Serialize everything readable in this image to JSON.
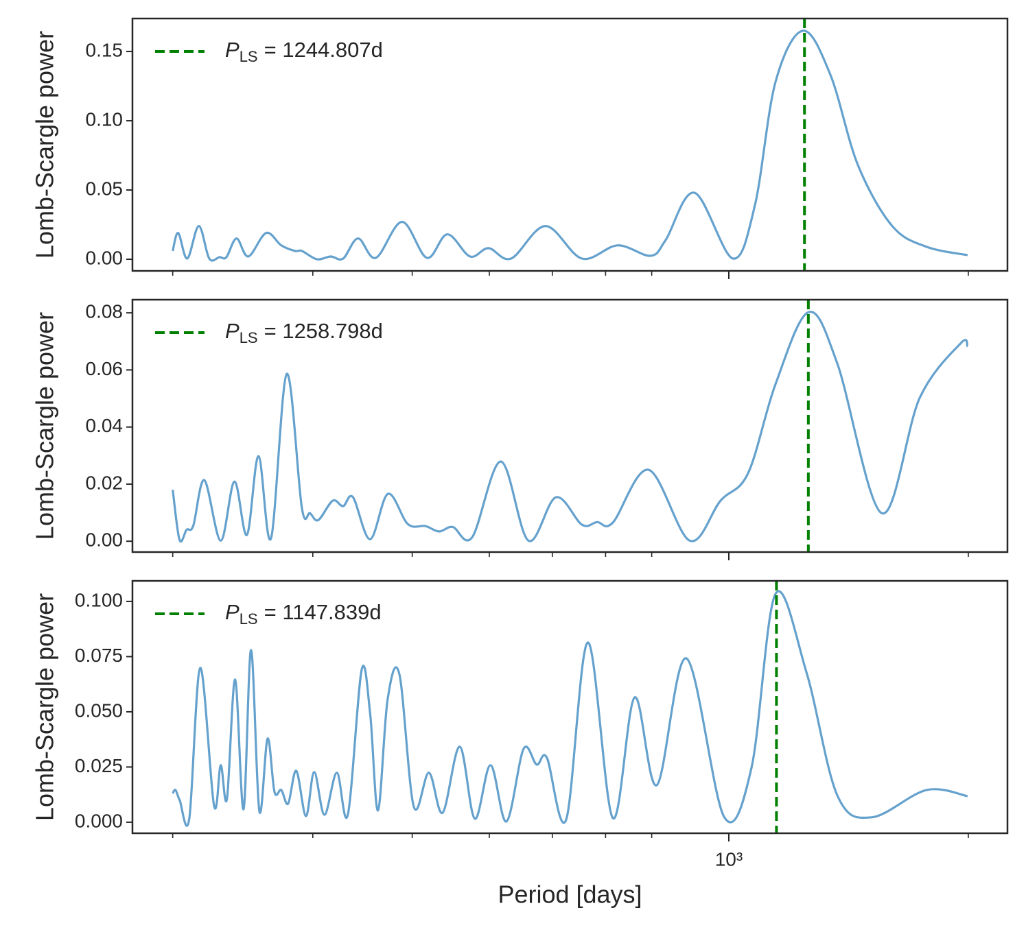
{
  "chart_data": [
    {
      "type": "line",
      "ylabel": "Lomb-Scargle power",
      "xscale": "log",
      "xlim": [
        178,
        2240
      ],
      "ylim": [
        -0.0084,
        0.1738
      ],
      "yticks": [
        {
          "value": 0,
          "label": "0.00"
        },
        0.05,
        {
          "value": 0.1,
          "label": "0.10"
        },
        0.15
      ],
      "series": [
        {
          "name": "Lomb-Scargle power",
          "color": "#65a1cd",
          "x": [
            200.0,
            203.2,
            208.6,
            215.7,
            222.3,
            229.0,
            233.6,
            240.6,
            248.9,
            262.1,
            273.8,
            284.9,
            290.6,
            303.6,
            315.9,
            327.5,
            342.0,
            360.1,
            388.4,
            417.3,
            442.8,
            472.9,
            498.9,
            532.6,
            588.3,
            653.6,
            724.8,
            797.4,
            833.2,
            905.6,
            1012.0,
            1078.4,
            1144.6,
            1239.6,
            1342.1,
            1453.0,
            1604.8,
            1772.3,
            1996.0
          ],
          "values": [
            0.006,
            0.019,
            0.0005,
            0.024,
            0.0005,
            0.0015,
            0.0015,
            0.015,
            0.002,
            0.019,
            0.01,
            0.006,
            0.006,
            0.0,
            0.002,
            0.0005,
            0.015,
            0.001,
            0.027,
            0.001,
            0.018,
            0.002,
            0.008,
            0.0005,
            0.024,
            0.0005,
            0.01,
            0.0025,
            0.014,
            0.048,
            0.0005,
            0.039,
            0.128,
            0.165,
            0.133,
            0.068,
            0.024,
            0.009,
            0.003
          ]
        }
      ],
      "peak": {
        "value": 1244.807,
        "label": "= 1244.807d"
      },
      "peak_symbol": "P",
      "peak_subscript": "LS",
      "peak_color": "#008000"
    },
    {
      "type": "line",
      "ylabel": "Lomb-Scargle power",
      "xscale": "log",
      "xlim": [
        178,
        2240
      ],
      "ylim": [
        -0.0038,
        0.0846
      ],
      "yticks": [
        {
          "value": 0,
          "label": "0.00"
        },
        0.02,
        0.04,
        0.06,
        0.08
      ],
      "series": [
        {
          "name": "Lomb-Scargle power",
          "color": "#65a1cd",
          "x": [
            200.0,
            204.0,
            208.2,
            212.3,
            219.2,
            229.8,
            239.1,
            247.9,
            256.4,
            265.8,
            278.2,
            290.6,
            297.6,
            304.8,
            317.8,
            327.5,
            337.0,
            354.1,
            372.9,
            395.0,
            415.6,
            432.4,
            449.9,
            475.8,
            517.0,
            559.8,
            606.2,
            653.6,
            683.1,
            714.8,
            792.9,
            892.9,
            976.4,
            1057.3,
            1144.6,
            1259.3,
            1368.9,
            1557.5,
            1737.6,
            1957.4,
            1996.0
          ],
          "values": [
            0.018,
            0.0005,
            0.004,
            0.0055,
            0.0214,
            0.0002,
            0.0209,
            0.0022,
            0.0298,
            0.001,
            0.0586,
            0.0118,
            0.0098,
            0.0074,
            0.0142,
            0.0123,
            0.0154,
            0.0007,
            0.0166,
            0.006,
            0.0053,
            0.0034,
            0.005,
            0.0014,
            0.0279,
            0.0002,
            0.0154,
            0.0058,
            0.0067,
            0.0065,
            0.025,
            0.0002,
            0.0142,
            0.0238,
            0.055,
            0.0802,
            0.0622,
            0.0098,
            0.0502,
            0.0694,
            0.0682
          ]
        }
      ],
      "peak": {
        "value": 1258.798,
        "label": "= 1258.798d"
      },
      "peak_symbol": "P",
      "peak_subscript": "LS",
      "peak_color": "#008000"
    },
    {
      "type": "line",
      "ylabel": "Lomb-Scargle power",
      "xlabel": "Period [days]",
      "xscale": "log",
      "xlim": [
        178,
        2240
      ],
      "xticks": [
        {
          "value": 1000,
          "label": "10³"
        }
      ],
      "xminor_ticks": [
        200,
        300,
        400,
        500,
        600,
        700,
        800,
        2000
      ],
      "ylim": [
        -0.005,
        0.1093
      ],
      "yticks": [
        {
          "value": 0,
          "label": "0.000"
        },
        0.025,
        {
          "value": 0.05,
          "label": "0.050"
        },
        0.075,
        {
          "value": 0.1,
          "label": "0.100"
        }
      ],
      "series": [
        {
          "name": "Lomb-Scargle power",
          "color": "#65a1cd",
          "x": [
            200.0,
            201.6,
            204.1,
            209.8,
            216.6,
            225.4,
            229.8,
            234.0,
            239.6,
            245.5,
            250.9,
            257.0,
            263.2,
            268.5,
            273.8,
            279.3,
            286.0,
            294.1,
            301.2,
            310.3,
            321.6,
            332.0,
            345.5,
            354.1,
            362.3,
            372.5,
            385.4,
            401.8,
            419.8,
            436.8,
            459.0,
            479.4,
            501.8,
            525.4,
            552.1,
            573.4,
            590.7,
            624.6,
            665.2,
            714.8,
            761.3,
            811.9,
            884.6,
            986.2,
            1067.7,
            1144.6,
            1251.8,
            1368.9,
            1511.8,
            1772.3,
            1996.0
          ],
          "values": [
            0.013,
            0.0146,
            0.0099,
            0.0016,
            0.0699,
            0.0075,
            0.0258,
            0.0106,
            0.0646,
            0.0059,
            0.078,
            0.005,
            0.0379,
            0.0137,
            0.0146,
            0.0084,
            0.0233,
            0.0028,
            0.0227,
            0.0034,
            0.0224,
            0.0034,
            0.0689,
            0.0494,
            0.0053,
            0.0556,
            0.0671,
            0.0071,
            0.0224,
            0.0043,
            0.0342,
            0.0016,
            0.0258,
            0.0003,
            0.0332,
            0.0261,
            0.0292,
            0.0012,
            0.0814,
            0.0019,
            0.0565,
            0.0168,
            0.0742,
            0.0025,
            0.0245,
            0.1034,
            0.068,
            0.0121,
            0.0022,
            0.0146,
            0.0118
          ]
        }
      ],
      "peak": {
        "value": 1147.839,
        "label": "= 1147.839d"
      },
      "peak_symbol": "P",
      "peak_subscript": "LS",
      "peak_color": "#008000"
    }
  ]
}
